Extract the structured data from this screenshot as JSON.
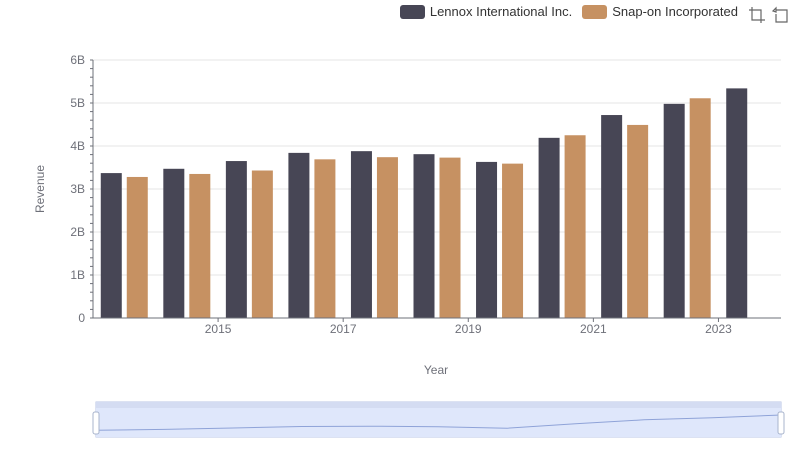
{
  "legend": {
    "series1_label": "Lennox International Inc.",
    "series2_label": "Snap-on Incorporated"
  },
  "toolbox": {
    "zoom_icon": "data-zoom-icon",
    "restore_icon": "restore-icon"
  },
  "colors": {
    "series1": "#474655",
    "series2": "#c69162",
    "grid": "#e4e4e4",
    "axis": "#6e7079",
    "zoom_fill": "#dfe7fb",
    "zoom_border": "#b9c6e5"
  },
  "chart_data": {
    "type": "bar",
    "xlabel": "Year",
    "ylabel": "Revenue",
    "x_tick_labels": [
      "2015",
      "2017",
      "2019",
      "2021",
      "2023"
    ],
    "y_tick_labels": [
      "0",
      "1B",
      "2B",
      "3B",
      "4B",
      "5B",
      "6B"
    ],
    "ylim": [
      0,
      6000000000
    ],
    "categories": [
      2014,
      2015,
      2016,
      2017,
      2018,
      2019,
      2020,
      2021,
      2022,
      2023,
      2024
    ],
    "series": [
      {
        "name": "Lennox International Inc.",
        "values": [
          3370000000,
          3470000000,
          3650000000,
          3840000000,
          3880000000,
          3810000000,
          3630000000,
          4190000000,
          4720000000,
          4980000000,
          5340000000
        ]
      },
      {
        "name": "Snap-on Incorporated",
        "values": [
          3280000000,
          3350000000,
          3430000000,
          3690000000,
          3740000000,
          3730000000,
          3590000000,
          4250000000,
          4490000000,
          5110000000,
          null
        ]
      }
    ],
    "grid": true,
    "legend_position": "top-right",
    "data_zoom": true
  }
}
